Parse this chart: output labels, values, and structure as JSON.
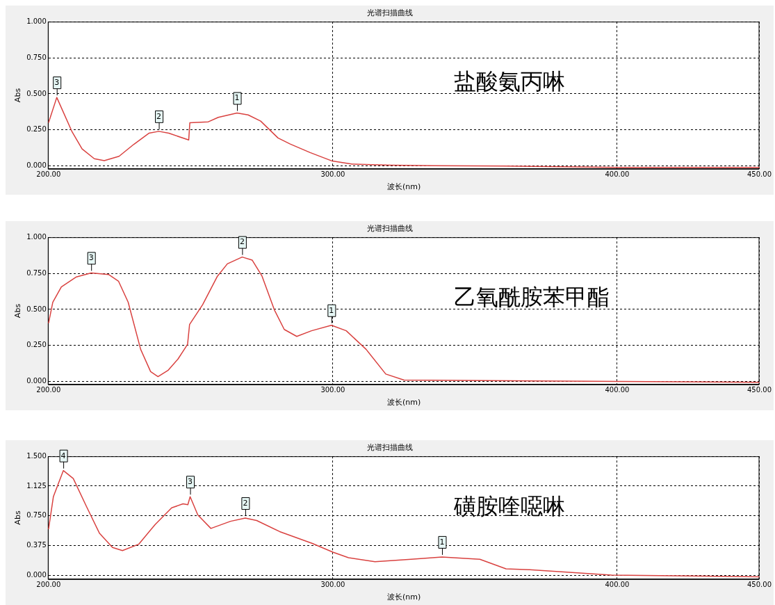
{
  "chart_data": [
    {
      "type": "line",
      "title": "光谱扫描曲线",
      "xlabel": "波长(nm)",
      "ylabel": "Abs",
      "grid": true,
      "legend": false,
      "marker": "none",
      "xlim": [
        200,
        450
      ],
      "ylim": [
        -0.02,
        1
      ],
      "xticks": [
        {
          "value": 200,
          "label": "200.00"
        },
        {
          "value": 300,
          "label": "300.00"
        },
        {
          "value": 400,
          "label": "400.00"
        },
        {
          "value": 450,
          "label": "450.00"
        }
      ],
      "yticks": [
        {
          "value": 0,
          "label": "0.000"
        },
        {
          "value": 0.25,
          "label": "0.250"
        },
        {
          "value": 0.5,
          "label": "0.500"
        },
        {
          "value": 0.75,
          "label": "0.750"
        },
        {
          "value": 1,
          "label": "1.000"
        }
      ],
      "series": [
        {
          "color": "#d9413f",
          "x": [
            200,
            202.9,
            208.3,
            211.8,
            216.1,
            219.6,
            224.8,
            230,
            235.3,
            238.8,
            242.3,
            249.3,
            249.7,
            256.2,
            259.7,
            266.3,
            270.2,
            274.6,
            280.7,
            285,
            292,
            299.8,
            306.8,
            320,
            335,
            360,
            400,
            450
          ],
          "values": [
            0.3,
            0.475,
            0.236,
            0.118,
            0.05,
            0.037,
            0.067,
            0.15,
            0.227,
            0.24,
            0.227,
            0.18,
            0.3,
            0.306,
            0.337,
            0.367,
            0.354,
            0.311,
            0.194,
            0.152,
            0.093,
            0.034,
            0.013,
            0.005,
            0.002,
            0,
            -0.01,
            -0.01
          ]
        }
      ],
      "annotations": [
        "盐酸氨丙啉",
        {
          "text": "3",
          "x": 202.9,
          "y": 0.475
        },
        {
          "text": "2",
          "x": 238.8,
          "y": 0.24
        },
        {
          "text": "1",
          "x": 266.3,
          "y": 0.367
        }
      ]
    },
    {
      "type": "line",
      "title": "光谱扫描曲线",
      "xlabel": "波长(nm)",
      "ylabel": "Abs",
      "grid": true,
      "legend": false,
      "marker": "none",
      "xlim": [
        200,
        450
      ],
      "ylim": [
        -0.02,
        1
      ],
      "xticks": [
        {
          "value": 200,
          "label": "200.00"
        },
        {
          "value": 300,
          "label": "300.00"
        },
        {
          "value": 400,
          "label": "400.00"
        },
        {
          "value": 450,
          "label": "450.00"
        }
      ],
      "yticks": [
        {
          "value": 0,
          "label": "0.000"
        },
        {
          "value": 0.25,
          "label": "0.250"
        },
        {
          "value": 0.5,
          "label": "0.500"
        },
        {
          "value": 0.75,
          "label": "0.750"
        },
        {
          "value": 1,
          "label": "1.000"
        }
      ],
      "series": [
        {
          "color": "#d9413f",
          "x": [
            200,
            201.5,
            204.5,
            209.8,
            215,
            221.1,
            224.6,
            228,
            232.4,
            235.9,
            238.5,
            242,
            245.5,
            248.9,
            249.6,
            254.2,
            259.4,
            262.9,
            268.1,
            271.6,
            275.1,
            279.4,
            282.9,
            287.3,
            292.5,
            299.5,
            304.7,
            311.7,
            318.6,
            325,
            362,
            450
          ],
          "values": [
            0.404,
            0.55,
            0.656,
            0.725,
            0.753,
            0.742,
            0.696,
            0.55,
            0.223,
            0.069,
            0.034,
            0.077,
            0.155,
            0.258,
            0.395,
            0.533,
            0.73,
            0.816,
            0.863,
            0.842,
            0.73,
            0.498,
            0.361,
            0.313,
            0.352,
            0.39,
            0.352,
            0.223,
            0.052,
            0.01,
            0.005,
            -0.005
          ]
        }
      ],
      "annotations": [
        "乙氧酰胺苯甲酯",
        {
          "text": "3",
          "x": 215,
          "y": 0.753
        },
        {
          "text": "2",
          "x": 268.1,
          "y": 0.863
        },
        {
          "text": "1",
          "x": 299.5,
          "y": 0.39
        }
      ]
    },
    {
      "type": "line",
      "title": "光谱扫描曲线",
      "xlabel": "波长(nm)",
      "ylabel": "Abs",
      "grid": true,
      "legend": false,
      "marker": "none",
      "xlim": [
        200,
        450
      ],
      "ylim": [
        -0.05,
        1.5
      ],
      "xticks": [
        {
          "value": 200,
          "label": "200.00"
        },
        {
          "value": 300,
          "label": "300.00"
        },
        {
          "value": 400,
          "label": "400.00"
        },
        {
          "value": 450,
          "label": "450.00"
        }
      ],
      "yticks": [
        {
          "value": 0,
          "label": "0.000"
        },
        {
          "value": 0.375,
          "label": "0.375"
        },
        {
          "value": 0.75,
          "label": "0.750"
        },
        {
          "value": 1.125,
          "label": "1.125"
        },
        {
          "value": 1.5,
          "label": "1.500"
        }
      ],
      "series": [
        {
          "color": "#d9413f",
          "x": [
            200,
            201.7,
            205.2,
            208.7,
            213.3,
            217.9,
            222.5,
            226,
            231.7,
            237.5,
            243.3,
            247.3,
            249,
            249.8,
            252.5,
            257.1,
            264,
            269.2,
            273.2,
            281.3,
            292.8,
            300,
            305.5,
            314.8,
            327.5,
            338.4,
            351.7,
            360.9,
            369,
            386,
            398,
            450
          ],
          "values": [
            0.58,
            0.99,
            1.32,
            1.22,
            0.87,
            0.53,
            0.35,
            0.31,
            0.39,
            0.64,
            0.85,
            0.9,
            0.89,
            0.99,
            0.76,
            0.59,
            0.68,
            0.72,
            0.69,
            0.55,
            0.4,
            0.29,
            0.22,
            0.17,
            0.2,
            0.23,
            0.2,
            0.08,
            0.07,
            0.03,
            0,
            -0.02
          ]
        }
      ],
      "annotations": [
        "磺胺喹噁啉",
        {
          "text": "4",
          "x": 205.2,
          "y": 1.32
        },
        {
          "text": "3",
          "x": 249.8,
          "y": 0.99
        },
        {
          "text": "2",
          "x": 269.2,
          "y": 0.72
        },
        {
          "text": "1",
          "x": 338.4,
          "y": 0.23
        }
      ]
    }
  ]
}
